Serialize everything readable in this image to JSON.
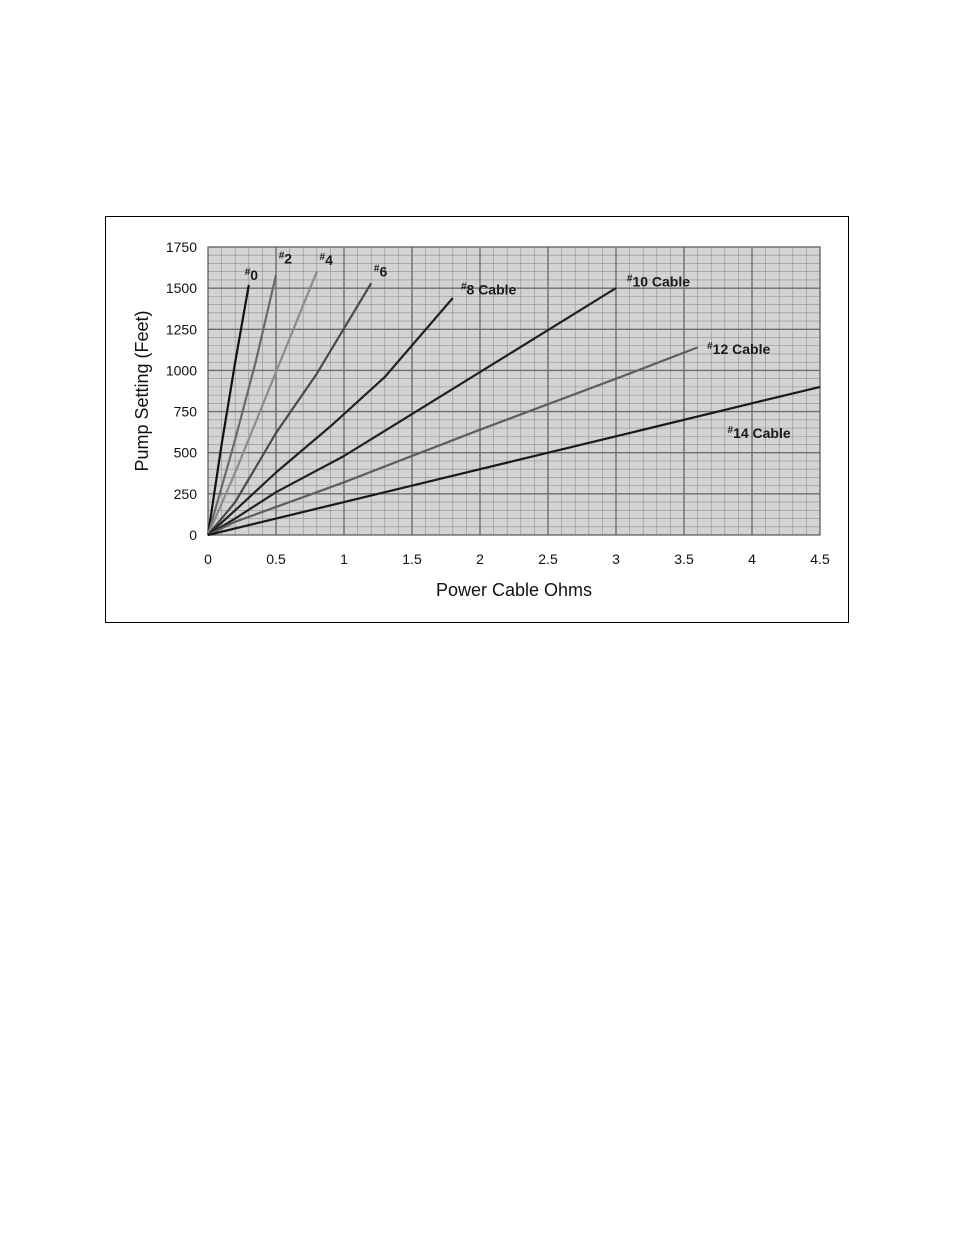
{
  "chart_data": {
    "type": "line",
    "title": "",
    "xlabel": "Power Cable Ohms",
    "ylabel": "Pump Setting (Feet)",
    "xlim": [
      0,
      4.5
    ],
    "ylim": [
      0,
      1750
    ],
    "x_ticks": [
      "0",
      "0.5",
      "1",
      "1.5",
      "2",
      "2.5",
      "3",
      "3.5",
      "4",
      "4.5"
    ],
    "y_ticks": [
      "0",
      "250",
      "500",
      "750",
      "1000",
      "1250",
      "1500",
      "1750"
    ],
    "grid": true,
    "plot_background": "#d3d3d3",
    "series": [
      {
        "name": "#0",
        "color": "#111111",
        "label_at": [
          0.27,
          1550
        ],
        "x": [
          0,
          0.1,
          0.2,
          0.3
        ],
        "y": [
          0,
          550,
          1050,
          1520
        ]
      },
      {
        "name": "#2",
        "color": "#6a6a6a",
        "label_at": [
          0.52,
          1650
        ],
        "x": [
          0,
          0.2,
          0.35,
          0.5
        ],
        "y": [
          0,
          580,
          1050,
          1580
        ]
      },
      {
        "name": "#4",
        "color": "#8c8c8c",
        "label_at": [
          0.82,
          1640
        ],
        "x": [
          0,
          0.2,
          0.5,
          0.8
        ],
        "y": [
          0,
          380,
          990,
          1600
        ]
      },
      {
        "name": "#6",
        "color": "#4a4a4a",
        "label_at": [
          1.22,
          1570
        ],
        "x": [
          0,
          0.2,
          0.5,
          0.8,
          1.2
        ],
        "y": [
          0,
          200,
          620,
          980,
          1530
        ]
      },
      {
        "name": "#8 Cable",
        "color": "#222222",
        "label_at": [
          1.86,
          1460
        ],
        "x": [
          0,
          0.2,
          0.5,
          0.9,
          1.3,
          1.8
        ],
        "y": [
          0,
          150,
          380,
          660,
          960,
          1440
        ]
      },
      {
        "name": "#10 Cable",
        "color": "#222222",
        "label_at": [
          3.08,
          1510
        ],
        "x": [
          0,
          0.2,
          0.5,
          1,
          2,
          3
        ],
        "y": [
          0,
          100,
          260,
          480,
          990,
          1500
        ]
      },
      {
        "name": "#12 Cable",
        "color": "#5e5e5e",
        "label_at": [
          3.67,
          1100
        ],
        "x": [
          0,
          0.2,
          1,
          2,
          3,
          3.6
        ],
        "y": [
          0,
          80,
          320,
          640,
          950,
          1140
        ]
      },
      {
        "name": "#14 Cable",
        "color": "#1a1a1a",
        "label_at": [
          3.82,
          590
        ],
        "x": [
          0,
          0.2,
          1,
          2,
          3,
          4,
          4.5
        ],
        "y": [
          0,
          40,
          200,
          400,
          600,
          800,
          900
        ]
      }
    ]
  }
}
